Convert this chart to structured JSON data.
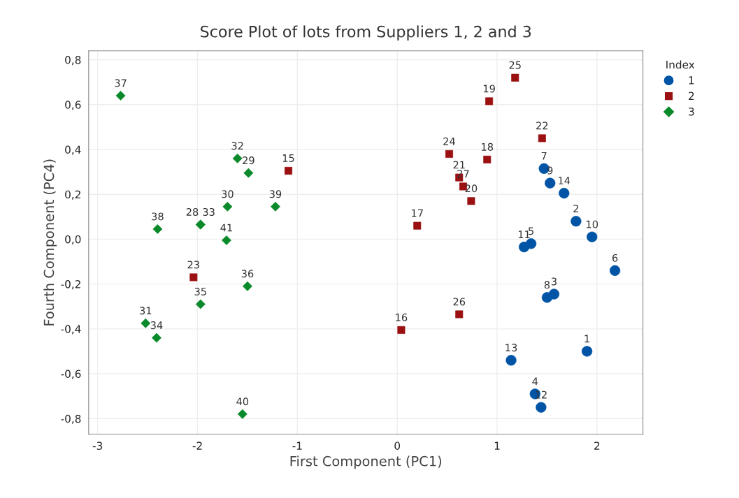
{
  "chart_data": {
    "type": "scatter",
    "title": "Score Plot of lots from Suppliers 1, 2 and 3",
    "xlabel": "First Component (PC1)",
    "ylabel": "Fourth Component (PC4)",
    "legend_title": "Index",
    "legend": "top right",
    "grid": true,
    "xlim": [
      -3.09,
      2.46
    ],
    "ylim": [
      -0.87,
      0.84
    ],
    "xticks": [
      -3,
      -2,
      -1,
      0,
      1,
      2
    ],
    "yticks": [
      {
        "value": -0.8,
        "label": "-0,8"
      },
      {
        "value": -0.6,
        "label": "-0,6"
      },
      {
        "value": -0.4,
        "label": "-0,4"
      },
      {
        "value": -0.2,
        "label": "-0,2"
      },
      {
        "value": 0.0,
        "label": "0,0"
      },
      {
        "value": 0.2,
        "label": "0,2"
      },
      {
        "value": 0.4,
        "label": "0,4"
      },
      {
        "value": 0.6,
        "label": "0,6"
      },
      {
        "value": 0.8,
        "label": "0,8"
      }
    ],
    "series": [
      {
        "name": "1",
        "color": "#0054a6",
        "marker": "circle",
        "x": [
          1.9,
          1.79,
          1.57,
          1.38,
          1.34,
          2.18,
          1.47,
          1.5,
          1.53,
          1.95,
          1.27,
          1.44,
          1.14,
          1.67
        ],
        "values": [
          -0.5,
          0.08,
          -0.245,
          -0.69,
          -0.02,
          -0.14,
          0.315,
          -0.26,
          0.25,
          0.01,
          -0.035,
          -0.75,
          -0.54,
          0.205
        ]
      },
      {
        "name": "2",
        "color": "#9b1111",
        "marker": "square",
        "x": [
          -1.09,
          0.04,
          0.2,
          0.9,
          0.92,
          0.74,
          0.62,
          1.45,
          -2.04,
          0.52,
          1.18,
          0.62,
          0.66
        ],
        "values": [
          0.305,
          -0.405,
          0.06,
          0.355,
          0.615,
          0.17,
          0.275,
          0.45,
          -0.17,
          0.38,
          0.72,
          -0.335,
          0.235
        ]
      },
      {
        "name": "3",
        "color": "#0a8a2a",
        "marker": "diamond",
        "x": [
          -1.97,
          -1.49,
          -1.7,
          -2.52,
          -1.6,
          -1.97,
          -2.41,
          -1.97,
          -1.5,
          -2.77,
          -2.4,
          -1.22,
          -1.55,
          -1.71
        ],
        "values": [
          0.065,
          0.295,
          0.145,
          -0.375,
          0.36,
          0.065,
          -0.44,
          -0.29,
          -0.21,
          0.64,
          0.045,
          0.145,
          -0.78,
          -0.005
        ]
      }
    ],
    "annotations": [
      {
        "text": "1",
        "x": 1.9,
        "y": -0.5
      },
      {
        "text": "2",
        "x": 1.79,
        "y": 0.08
      },
      {
        "text": "3",
        "x": 1.57,
        "y": -0.245
      },
      {
        "text": "4",
        "x": 1.38,
        "y": -0.69
      },
      {
        "text": "5",
        "x": 1.34,
        "y": -0.02
      },
      {
        "text": "6",
        "x": 2.18,
        "y": -0.14
      },
      {
        "text": "7",
        "x": 1.47,
        "y": 0.315
      },
      {
        "text": "8",
        "x": 1.5,
        "y": -0.26
      },
      {
        "text": "9",
        "x": 1.53,
        "y": 0.25
      },
      {
        "text": "10",
        "x": 1.95,
        "y": 0.01
      },
      {
        "text": "11",
        "x": 1.27,
        "y": -0.035
      },
      {
        "text": "12",
        "x": 1.44,
        "y": -0.75
      },
      {
        "text": "13",
        "x": 1.14,
        "y": -0.54
      },
      {
        "text": "14",
        "x": 1.67,
        "y": 0.205
      },
      {
        "text": "15",
        "x": -1.09,
        "y": 0.305
      },
      {
        "text": "16",
        "x": 0.04,
        "y": -0.405
      },
      {
        "text": "17",
        "x": 0.2,
        "y": 0.06
      },
      {
        "text": "18",
        "x": 0.9,
        "y": 0.355
      },
      {
        "text": "19",
        "x": 0.92,
        "y": 0.615
      },
      {
        "text": "20",
        "x": 0.74,
        "y": 0.17
      },
      {
        "text": "21",
        "x": 0.62,
        "y": 0.275
      },
      {
        "text": "22",
        "x": 1.45,
        "y": 0.45
      },
      {
        "text": "23",
        "x": -2.04,
        "y": -0.17
      },
      {
        "text": "24",
        "x": 0.52,
        "y": 0.38
      },
      {
        "text": "25",
        "x": 1.18,
        "y": 0.72
      },
      {
        "text": "26",
        "x": 0.62,
        "y": -0.335
      },
      {
        "text": "27",
        "x": 0.66,
        "y": 0.235
      },
      {
        "text": "28",
        "x": -1.97,
        "y": 0.065
      },
      {
        "text": "29",
        "x": -1.49,
        "y": 0.295
      },
      {
        "text": "30",
        "x": -1.7,
        "y": 0.145
      },
      {
        "text": "31",
        "x": -2.52,
        "y": -0.375
      },
      {
        "text": "32",
        "x": -1.6,
        "y": 0.36
      },
      {
        "text": "33",
        "x": -1.97,
        "y": 0.065
      },
      {
        "text": "34",
        "x": -2.41,
        "y": -0.44
      },
      {
        "text": "35",
        "x": -1.97,
        "y": -0.29
      },
      {
        "text": "36",
        "x": -1.5,
        "y": -0.21
      },
      {
        "text": "37",
        "x": -2.77,
        "y": 0.64
      },
      {
        "text": "38",
        "x": -2.4,
        "y": 0.045
      },
      {
        "text": "39",
        "x": -1.22,
        "y": 0.145
      },
      {
        "text": "40",
        "x": -1.55,
        "y": -0.78
      },
      {
        "text": "41",
        "x": -1.71,
        "y": -0.005
      }
    ]
  }
}
